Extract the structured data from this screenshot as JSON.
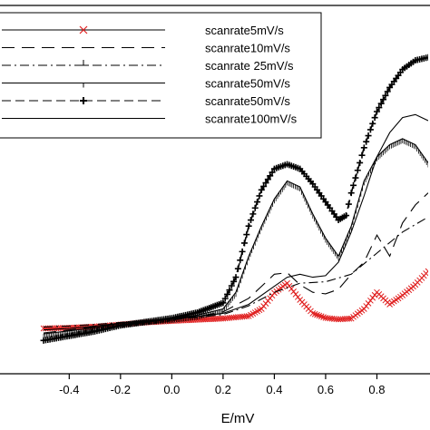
{
  "chart_data": {
    "type": "line",
    "title": "",
    "xlabel": "E/mV",
    "ylabel": "",
    "xlim": [
      -0.67,
      1.0
    ],
    "ylim": [
      0,
      100
    ],
    "grid": false,
    "legend_position": "top-left",
    "x_ticks": [
      "-0.4",
      "-0.2",
      "0.0",
      "0.2",
      "0.4",
      "0.6",
      "0.8"
    ],
    "x_tick_values": [
      -0.4,
      -0.2,
      0.0,
      0.2,
      0.4,
      0.6,
      0.8
    ],
    "series": [
      {
        "name": "scanrate5mV/s",
        "color": "#e02020",
        "style": "marker-x",
        "x": [
          -0.5,
          -0.4,
          -0.3,
          -0.2,
          -0.1,
          0.0,
          0.1,
          0.2,
          0.3,
          0.35,
          0.4,
          0.45,
          0.5,
          0.55,
          0.6,
          0.65,
          0.7,
          0.75,
          0.8,
          0.85,
          0.9,
          0.95,
          1.0
        ],
        "y": [
          3.0,
          3.2,
          3.6,
          4.3,
          5.0,
          5.5,
          5.9,
          6.3,
          7.1,
          9.5,
          14.8,
          18.0,
          12.5,
          8.0,
          6.5,
          6.0,
          6.3,
          9.5,
          15.0,
          11.0,
          14.0,
          17.5,
          22.0
        ]
      },
      {
        "name": "scanrate10mV/s",
        "color": "#000000",
        "style": "long-dash",
        "x": [
          -0.5,
          -0.4,
          -0.3,
          -0.2,
          -0.1,
          0.0,
          0.1,
          0.2,
          0.3,
          0.35,
          0.4,
          0.45,
          0.5,
          0.55,
          0.6,
          0.65,
          0.7,
          0.75,
          0.8,
          0.85,
          0.9,
          0.95,
          1.0
        ],
        "y": [
          1.5,
          2.5,
          3.5,
          4.8,
          5.6,
          6.2,
          7.0,
          8.5,
          13.0,
          17.0,
          21.0,
          21.5,
          17.5,
          15.0,
          14.5,
          16.0,
          21.0,
          25.0,
          34.0,
          27.0,
          38.0,
          44.0,
          48.0
        ]
      },
      {
        "name": "scanrate 25mV/s",
        "color": "#000000",
        "style": "dash-dot",
        "x": [
          -0.5,
          -0.4,
          -0.3,
          -0.2,
          -0.1,
          0.0,
          0.1,
          0.2,
          0.3,
          0.4,
          0.5,
          0.6,
          0.7,
          0.8,
          0.9,
          1.0
        ],
        "y": [
          3.5,
          3.8,
          4.3,
          5.0,
          5.6,
          6.1,
          6.7,
          7.6,
          10.5,
          15.0,
          18.0,
          18.5,
          21.0,
          28.0,
          35.0,
          40.0
        ]
      },
      {
        "name": "scanrate50mV/s",
        "color": "#000000",
        "style": "vertical-tick",
        "x": [
          -0.5,
          -0.4,
          -0.3,
          -0.2,
          -0.1,
          0.0,
          0.1,
          0.2,
          0.25,
          0.3,
          0.35,
          0.4,
          0.45,
          0.5,
          0.55,
          0.6,
          0.65,
          0.7,
          0.75,
          0.8,
          0.85,
          0.9,
          0.95,
          1.0
        ],
        "y": [
          1.2,
          2.2,
          3.3,
          4.8,
          5.6,
          6.3,
          7.4,
          9.5,
          15.0,
          27.0,
          37.0,
          46.0,
          52.0,
          50.0,
          41.0,
          33.0,
          27.0,
          37.0,
          52.0,
          60.0,
          64.0,
          66.0,
          64.0,
          58.0
        ]
      },
      {
        "name": "scanrate50mV/s",
        "color": "#000000",
        "style": "dash-plus",
        "x": [
          -0.5,
          -0.4,
          -0.3,
          -0.2,
          -0.1,
          0.0,
          0.1,
          0.2,
          0.25,
          0.3,
          0.35,
          0.4,
          0.45,
          0.5,
          0.55,
          0.6,
          0.65,
          0.68,
          0.7,
          0.75,
          0.8,
          0.85,
          0.9,
          0.95,
          1.0
        ],
        "y": [
          -1.0,
          0.5,
          2.0,
          4.0,
          5.2,
          6.4,
          8.3,
          11.5,
          20.0,
          37.0,
          49.0,
          56.0,
          57.5,
          56.0,
          51.0,
          45.0,
          39.0,
          40.5,
          48.0,
          63.0,
          75.0,
          83.0,
          89.0,
          92.0,
          93.0
        ]
      },
      {
        "name": "scanrate100mV/s",
        "color": "#000000",
        "style": "solid",
        "x": [
          -0.5,
          -0.4,
          -0.3,
          -0.2,
          -0.1,
          0.0,
          0.1,
          0.2,
          0.3,
          0.4,
          0.45,
          0.5,
          0.55,
          0.6,
          0.65,
          0.7,
          0.75,
          0.8,
          0.85,
          0.9,
          0.95,
          1.0
        ],
        "y": [
          2.5,
          3.0,
          3.8,
          4.8,
          5.6,
          6.2,
          7.0,
          8.0,
          11.0,
          17.0,
          20.0,
          21.0,
          20.0,
          20.5,
          25.0,
          35.0,
          47.0,
          60.0,
          68.0,
          73.0,
          74.0,
          72.0
        ]
      }
    ]
  }
}
